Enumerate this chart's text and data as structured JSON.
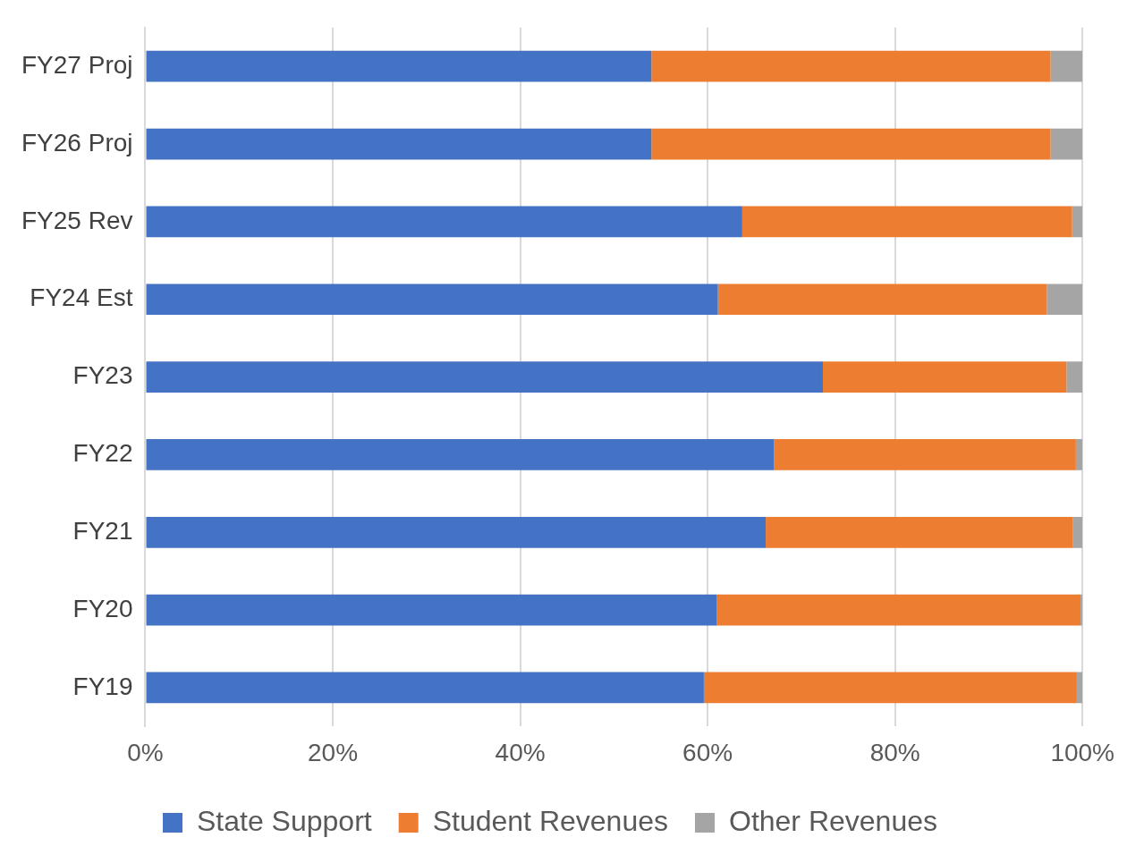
{
  "chart_data": {
    "type": "bar",
    "orientation": "horizontal",
    "stacked": true,
    "categories": [
      "FY27 Proj",
      "FY26 Proj",
      "FY25 Rev",
      "FY24 Est",
      "FY23",
      "FY22",
      "FY21",
      "FY20",
      "FY19"
    ],
    "series": [
      {
        "name": "State Support",
        "color": "#4472c4",
        "values": [
          54.0,
          54.0,
          63.7,
          61.1,
          72.3,
          67.1,
          66.2,
          61.0,
          59.6
        ]
      },
      {
        "name": "Student Revenues",
        "color": "#ed7d31",
        "values": [
          42.6,
          42.6,
          35.2,
          35.1,
          26.0,
          32.2,
          32.8,
          38.8,
          39.8
        ]
      },
      {
        "name": "Other Revenues",
        "color": "#a5a5a5",
        "values": [
          3.4,
          3.4,
          1.1,
          3.8,
          1.7,
          0.7,
          1.0,
          0.2,
          0.6
        ]
      }
    ],
    "xlim": [
      0,
      100
    ],
    "xticks": [
      {
        "value": 0,
        "label": "0%"
      },
      {
        "value": 20,
        "label": "20%"
      },
      {
        "value": 40,
        "label": "40%"
      },
      {
        "value": 60,
        "label": "60%"
      },
      {
        "value": 80,
        "label": "80%"
      },
      {
        "value": 100,
        "label": "100%"
      }
    ],
    "grid": "x",
    "legend": "bottom"
  }
}
